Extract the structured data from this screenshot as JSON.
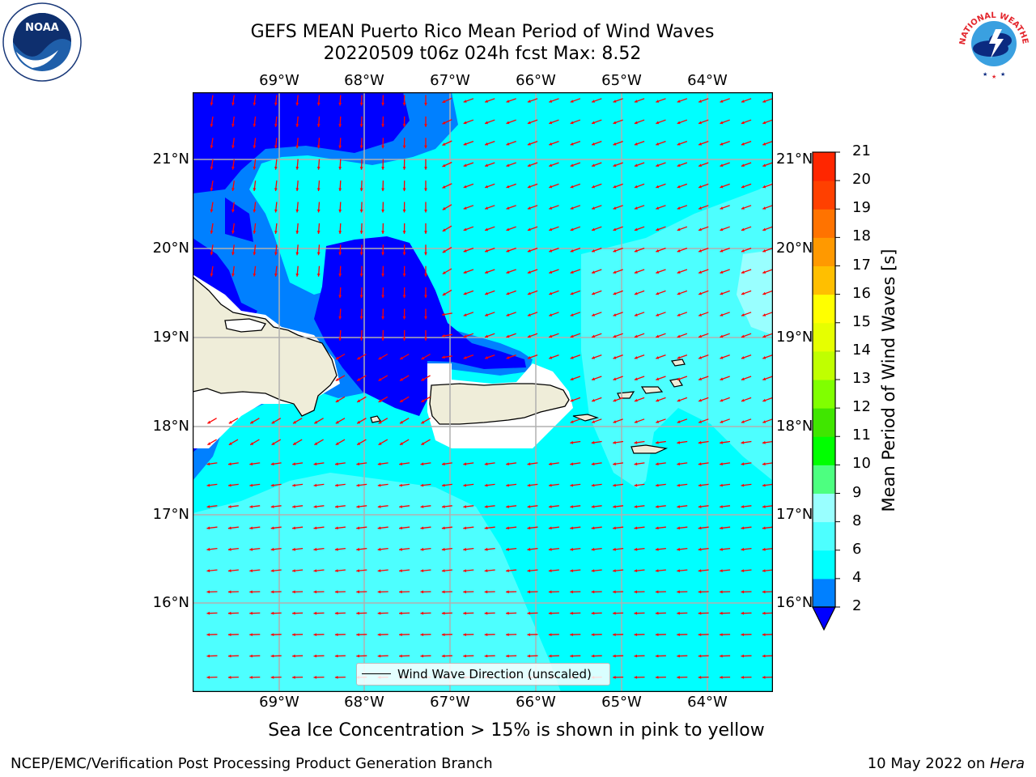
{
  "title": {
    "line1": "GEFS MEAN Puerto Rico Mean Period of Wind Waves",
    "line2": "20220509 t06z 024h fcst   Max: 8.52"
  },
  "map": {
    "lon_labels": [
      "69°W",
      "68°W",
      "67°W",
      "66°W",
      "65°W",
      "64°W"
    ],
    "lat_labels": [
      "21°N",
      "20°N",
      "19°N",
      "18°N",
      "17°N",
      "16°N"
    ],
    "legend_label": "Wind Wave Direction (unscaled)",
    "colors": {
      "ocean_4_6": "#00ffff",
      "ocean_6_8": "#4dffff",
      "ocean_8_9": "#99ffff",
      "band_2_4": "#0080ff",
      "band_lt_2": "#0000ff",
      "land": "#efedd9",
      "arrow": "#ff0000",
      "grid": "#b0b0b0"
    }
  },
  "colorbar": {
    "label": "Mean Period of Wind Waves [s]",
    "ticks": [
      "2",
      "4",
      "6",
      "8",
      "9",
      "10",
      "11",
      "12",
      "13",
      "14",
      "15",
      "16",
      "17",
      "18",
      "19",
      "20",
      "21"
    ],
    "colors": [
      "#0080ff",
      "#00ffff",
      "#4dffff",
      "#99ffff",
      "#4dff80",
      "#00ff00",
      "#40e600",
      "#80ff00",
      "#c0ff00",
      "#e6ff00",
      "#ffff00",
      "#ffbf00",
      "#ff9900",
      "#ff7300",
      "#ff4000",
      "#ff2600",
      "#ff0000"
    ],
    "under_color": "#0000ff"
  },
  "note": "Sea Ice Concentration > 15% is shown in pink to yellow",
  "footer": {
    "left": "NCEP/EMC/Verification Post Processing Product Generation Branch",
    "date": "10 May 2022 on ",
    "machine": "Hera"
  },
  "logos": {
    "noaa_text": "NOAA",
    "nws_text": "NATIONAL WEATHER SERVICE"
  }
}
